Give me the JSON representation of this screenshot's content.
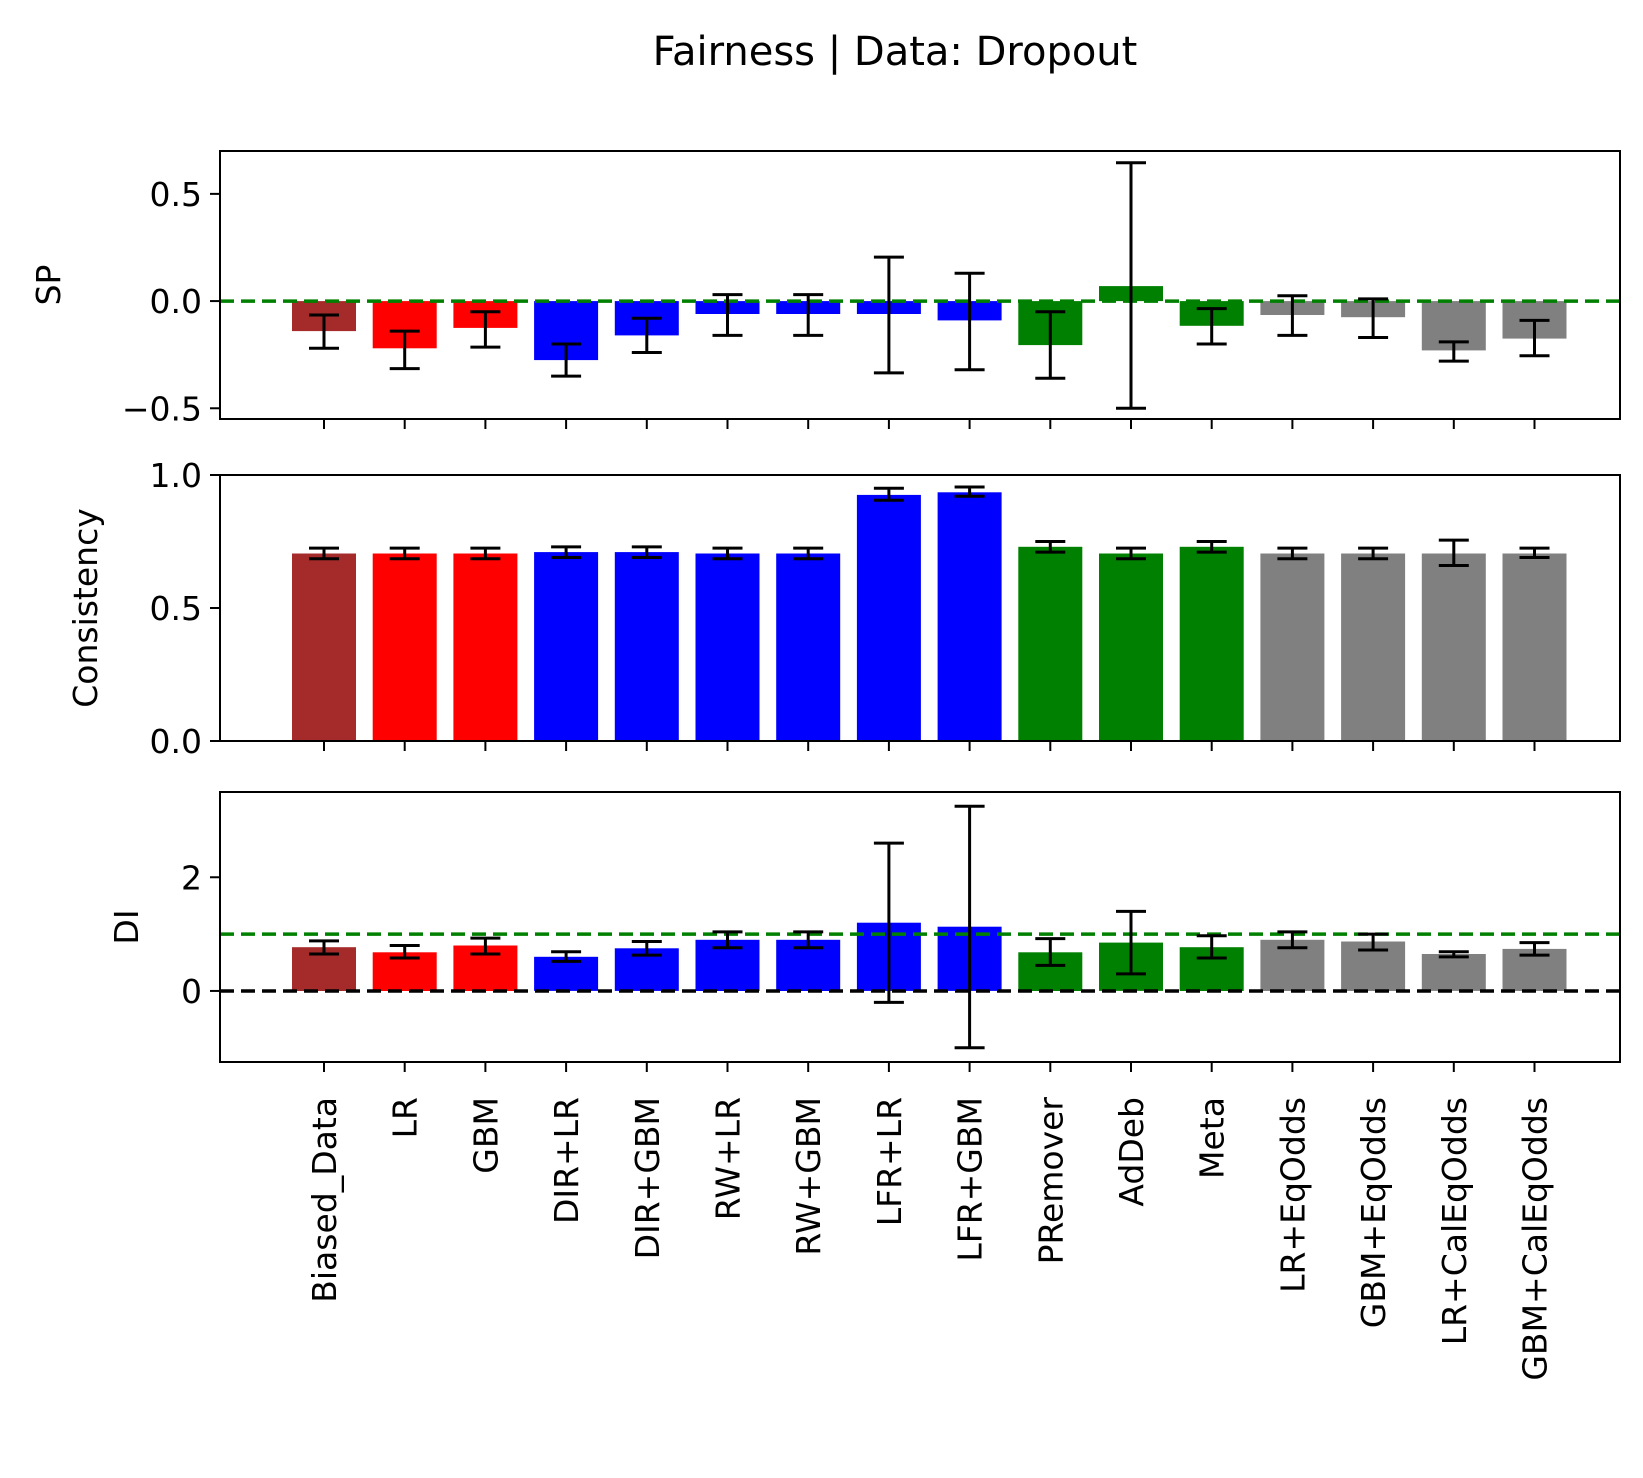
{
  "chart_data": {
    "type": "bar",
    "title": "Fairness  | Data: Dropout",
    "categories": [
      "Biased_Data",
      "LR",
      "GBM",
      "DIR+LR",
      "DIR+GBM",
      "RW+LR",
      "RW+GBM",
      "LFR+LR",
      "LFR+GBM",
      "PRemover",
      "AdDeb",
      "Meta",
      "LR+EqOdds",
      "GBM+EqOdds",
      "LR+CalEqOdds",
      "GBM+CalEqOdds"
    ],
    "bar_colors": [
      "#a52a2a",
      "#ff0000",
      "#ff0000",
      "#0000ff",
      "#0000ff",
      "#0000ff",
      "#0000ff",
      "#0000ff",
      "#0000ff",
      "#008000",
      "#008000",
      "#008000",
      "#808080",
      "#808080",
      "#808080",
      "#808080"
    ],
    "panels": [
      {
        "ylabel": "SP",
        "ylim": [
          -0.55,
          0.7
        ],
        "yticks": [
          -0.5,
          0.0,
          0.5
        ],
        "ytick_labels": [
          "−0.5",
          "0.0",
          "0.5"
        ],
        "values": [
          -0.14,
          -0.22,
          -0.125,
          -0.275,
          -0.16,
          -0.06,
          -0.06,
          -0.06,
          -0.09,
          -0.205,
          0.07,
          -0.115,
          -0.065,
          -0.075,
          -0.23,
          -0.175
        ],
        "err_low": [
          -0.22,
          -0.315,
          -0.215,
          -0.35,
          -0.24,
          -0.16,
          -0.16,
          -0.335,
          -0.32,
          -0.36,
          -0.5,
          -0.2,
          -0.16,
          -0.17,
          -0.28,
          -0.255
        ],
        "err_high": [
          -0.065,
          -0.14,
          -0.05,
          -0.2,
          -0.08,
          0.03,
          0.03,
          0.205,
          0.13,
          -0.05,
          0.645,
          -0.035,
          0.025,
          0.01,
          -0.19,
          -0.09
        ],
        "reference_lines": [
          {
            "y": 0.0,
            "color": "#008000",
            "style": "dashed"
          }
        ],
        "show_xticklabels": false
      },
      {
        "ylabel": "Consistency",
        "ylim": [
          0.0,
          1.0
        ],
        "yticks": [
          0.0,
          0.5,
          1.0
        ],
        "ytick_labels": [
          "0.0",
          "0.5",
          "1.0"
        ],
        "values": [
          0.705,
          0.705,
          0.705,
          0.71,
          0.71,
          0.705,
          0.705,
          0.925,
          0.935,
          0.73,
          0.705,
          0.73,
          0.705,
          0.705,
          0.705,
          0.705
        ],
        "err_low": [
          0.685,
          0.685,
          0.685,
          0.69,
          0.69,
          0.685,
          0.685,
          0.905,
          0.92,
          0.71,
          0.685,
          0.71,
          0.685,
          0.685,
          0.66,
          0.69
        ],
        "err_high": [
          0.725,
          0.725,
          0.725,
          0.73,
          0.73,
          0.725,
          0.725,
          0.95,
          0.955,
          0.75,
          0.725,
          0.75,
          0.725,
          0.725,
          0.755,
          0.725
        ],
        "reference_lines": [],
        "show_xticklabels": false
      },
      {
        "ylabel": "DI",
        "ylim": [
          -1.25,
          3.5
        ],
        "yticks": [
          0,
          2
        ],
        "ytick_labels": [
          "0",
          "2"
        ],
        "values": [
          0.77,
          0.68,
          0.8,
          0.6,
          0.75,
          0.9,
          0.9,
          1.2,
          1.13,
          0.68,
          0.85,
          0.77,
          0.9,
          0.87,
          0.65,
          0.74
        ],
        "err_low": [
          0.65,
          0.58,
          0.65,
          0.52,
          0.63,
          0.76,
          0.76,
          -0.2,
          -1.0,
          0.45,
          0.3,
          0.58,
          0.76,
          0.72,
          0.6,
          0.63
        ],
        "err_high": [
          0.88,
          0.8,
          0.93,
          0.69,
          0.87,
          1.04,
          1.04,
          2.6,
          3.25,
          0.92,
          1.4,
          0.97,
          1.04,
          1.0,
          0.69,
          0.85
        ],
        "reference_lines": [
          {
            "y": 1.0,
            "color": "#008000",
            "style": "dashed"
          },
          {
            "y": 0.0,
            "color": "#000000",
            "style": "dashed"
          }
        ],
        "show_xticklabels": true
      }
    ],
    "grid": false,
    "legend": "none"
  }
}
